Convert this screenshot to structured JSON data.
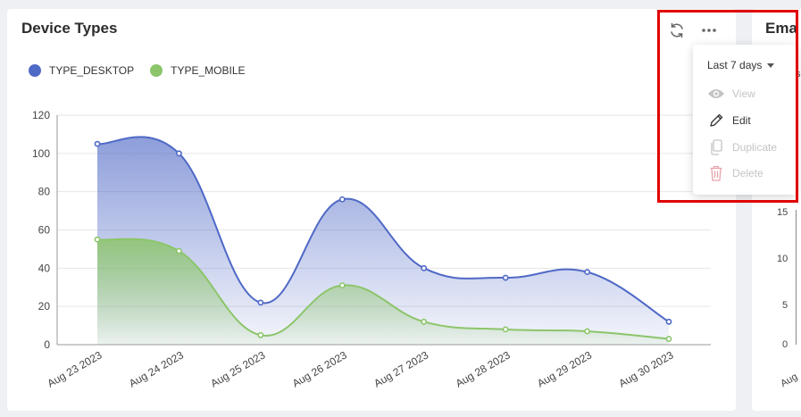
{
  "card": {
    "title": "Device Types",
    "legend": [
      {
        "label": "TYPE_DESKTOP",
        "color": "#4f69c6"
      },
      {
        "label": "TYPE_MOBILE",
        "color": "#8cc56a"
      }
    ]
  },
  "menu": {
    "date_range": "Last 7 days",
    "items": [
      {
        "label": "View",
        "icon": "eye-icon",
        "state": "disabled"
      },
      {
        "label": "Edit",
        "icon": "pencil-icon",
        "state": "enabled"
      },
      {
        "label": "Duplicate",
        "icon": "copy-icon",
        "state": "disabled"
      },
      {
        "label": "Delete",
        "icon": "trash-icon",
        "state": "disabled"
      }
    ]
  },
  "card2": {
    "title": "Ema",
    "y_ticks": [
      "15",
      "10",
      "5",
      "0"
    ],
    "peek_text": "s",
    "x_label_peek": "Aug"
  },
  "chart_data": {
    "type": "area",
    "categories": [
      "Aug 23 2023",
      "Aug 24 2023",
      "Aug 25 2023",
      "Aug 26 2023",
      "Aug 27 2023",
      "Aug 28 2023",
      "Aug 29 2023",
      "Aug 30 2023"
    ],
    "series": [
      {
        "name": "TYPE_DESKTOP",
        "color": "#4f69c6",
        "values": [
          105,
          100,
          22,
          76,
          40,
          35,
          38,
          12
        ]
      },
      {
        "name": "TYPE_MOBILE",
        "color": "#8cc56a",
        "values": [
          55,
          49,
          5,
          31,
          12,
          8,
          7,
          3
        ]
      }
    ],
    "ylim": [
      0,
      120
    ],
    "yticks": [
      0,
      20,
      40,
      60,
      80,
      100,
      120
    ],
    "grid": true,
    "legend": "top-left",
    "title": "",
    "xlabel": "",
    "ylabel": ""
  }
}
